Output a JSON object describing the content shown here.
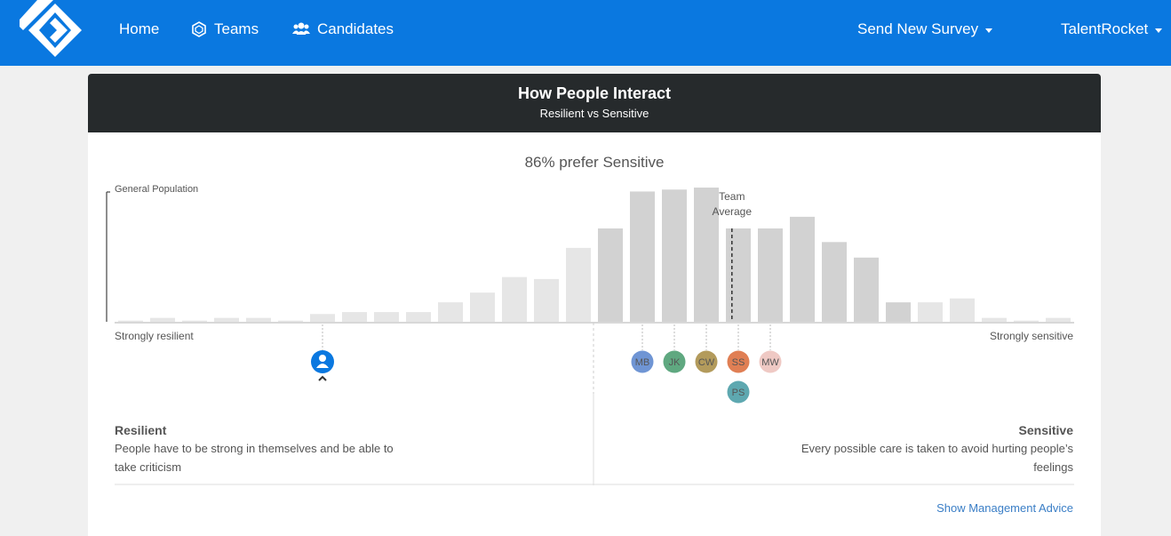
{
  "nav": {
    "home": "Home",
    "teams": "Teams",
    "candidates": "Candidates",
    "send_survey": "Send New Survey",
    "account": "TalentRocket"
  },
  "card": {
    "title": "How People Interact",
    "subtitle": "Resilient vs Sensitive"
  },
  "headline": "86% prefer Sensitive",
  "chart_data": {
    "type": "bar",
    "title": "General Population",
    "x_left_label": "Strongly resilient",
    "x_right_label": "Strongly sensitive",
    "team_average_label": [
      "Team",
      "Average"
    ],
    "team_average_position": 19.3,
    "values": [
      0.3,
      1,
      0.3,
      1,
      1,
      0.3,
      2,
      2.5,
      2.5,
      2.5,
      5,
      7.5,
      11.5,
      11,
      19,
      24,
      33.5,
      34,
      34.5,
      24,
      24,
      27,
      20.5,
      16.5,
      5,
      5,
      6,
      1,
      0.3,
      1
    ],
    "highlight_range": [
      15,
      25
    ],
    "ylim": [
      0,
      40
    ]
  },
  "members": [
    {
      "initials": "MB",
      "color": "#6f95d4",
      "bin": 16.5
    },
    {
      "initials": "JK",
      "color": "#5fa880",
      "bin": 17.5
    },
    {
      "initials": "CW",
      "color": "#b39b5c",
      "bin": 18.5
    },
    {
      "initials": "SS",
      "color": "#e07f54",
      "bin": 19.5
    },
    {
      "initials": "MW",
      "color": "#efc9c4",
      "bin": 20.5
    },
    {
      "initials": "PS",
      "color": "#5ea8b0",
      "bin": 19.5
    }
  ],
  "candidate": {
    "bin": 6.5,
    "color": "#0a78e0"
  },
  "left_desc": {
    "title": "Resilient",
    "line1": "People have to be strong in themselves and be able to",
    "line2": "take criticism"
  },
  "right_desc": {
    "title": "Sensitive",
    "line1": "Every possible care is taken to avoid hurting people’s",
    "line2": "feelings"
  },
  "management_link": "Show Management Advice"
}
